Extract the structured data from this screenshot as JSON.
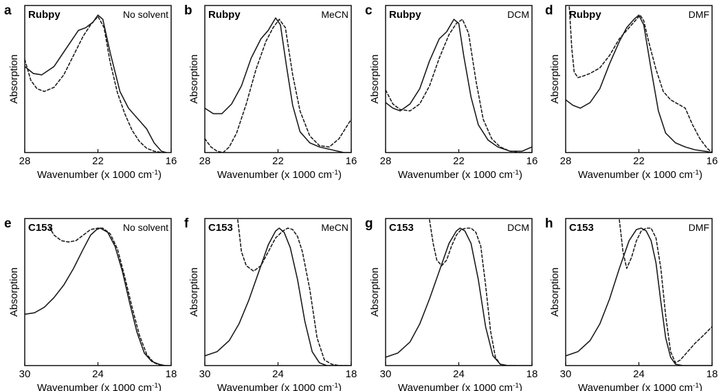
{
  "colors": {
    "line": "#1a1a1a",
    "frame": "#000000",
    "background": "#ffffff"
  },
  "chart_data": [
    {
      "type": "line",
      "panel": "a",
      "compound": "Rubpy",
      "solvent": "No solvent",
      "xlabel": "Wavenumber (x 1000 cm",
      "xlabel_sup": "-1",
      "xlabel_close": ")",
      "ylabel": "Absorption",
      "xlim": [
        28,
        16
      ],
      "xticks": [
        "28",
        "22",
        "16"
      ],
      "ylim": [
        0,
        1
      ],
      "series": [
        {
          "name": "solid",
          "style": "solid",
          "x": [
            28,
            27.3,
            26.6,
            25.6,
            24.6,
            23.6,
            23.0,
            22.4,
            22.0,
            21.6,
            21.0,
            20.2,
            19.5,
            18.8,
            18.0,
            17.4,
            16.8,
            16.4
          ],
          "y": [
            0.62,
            0.57,
            0.56,
            0.62,
            0.75,
            0.88,
            0.9,
            0.94,
            0.99,
            0.96,
            0.72,
            0.44,
            0.32,
            0.25,
            0.17,
            0.07,
            0.01,
            0.0
          ]
        },
        {
          "name": "dashed",
          "style": "dashed",
          "x": [
            28,
            27.5,
            27.0,
            26.4,
            25.6,
            24.8,
            24.0,
            23.2,
            22.6,
            22.0,
            21.5,
            21.0,
            20.4,
            19.8,
            19.2,
            18.6,
            18.0,
            17.4,
            16.8
          ],
          "y": [
            0.67,
            0.52,
            0.46,
            0.44,
            0.47,
            0.56,
            0.7,
            0.84,
            0.92,
            0.98,
            0.9,
            0.65,
            0.43,
            0.28,
            0.16,
            0.08,
            0.03,
            0.01,
            0.0
          ]
        }
      ]
    },
    {
      "type": "line",
      "panel": "b",
      "compound": "Rubpy",
      "solvent": "MeCN",
      "xlabel": "Wavenumber (x 1000 cm",
      "xlabel_sup": "-1",
      "xlabel_close": ")",
      "ylabel": "Absorption",
      "xlim": [
        28,
        16
      ],
      "xticks": [
        "28",
        "22",
        "16"
      ],
      "ylim": [
        0,
        1
      ],
      "series": [
        {
          "name": "solid",
          "style": "solid",
          "x": [
            28,
            27.3,
            26.6,
            25.8,
            25.0,
            24.2,
            23.4,
            22.8,
            22.2,
            21.8,
            21.3,
            20.8,
            20.2,
            19.4,
            18.6,
            17.6,
            16.6,
            16
          ],
          "y": [
            0.32,
            0.28,
            0.28,
            0.35,
            0.48,
            0.68,
            0.82,
            0.88,
            0.97,
            0.92,
            0.62,
            0.34,
            0.15,
            0.07,
            0.04,
            0.02,
            0.0,
            0.0
          ]
        },
        {
          "name": "dashed",
          "style": "dashed",
          "x": [
            28,
            27.5,
            27.0,
            26.5,
            26.0,
            25.4,
            24.6,
            23.8,
            23.0,
            22.4,
            21.9,
            21.4,
            20.8,
            20.2,
            19.4,
            18.6,
            17.8,
            17.0,
            16.0
          ],
          "y": [
            0.1,
            0.04,
            0.01,
            0.0,
            0.04,
            0.14,
            0.35,
            0.6,
            0.8,
            0.9,
            0.96,
            0.9,
            0.56,
            0.3,
            0.12,
            0.05,
            0.04,
            0.1,
            0.24
          ]
        }
      ]
    },
    {
      "type": "line",
      "panel": "c",
      "compound": "Rubpy",
      "solvent": "DCM",
      "xlabel": "Wavenumber (x 1000 cm",
      "xlabel_sup": "-1",
      "xlabel_close": ")",
      "ylabel": "Absorption",
      "xlim": [
        28,
        16
      ],
      "xticks": [
        "28",
        "22",
        "16"
      ],
      "ylim": [
        0,
        1
      ],
      "series": [
        {
          "name": "solid",
          "style": "solid",
          "x": [
            28,
            27.4,
            26.8,
            26.0,
            25.2,
            24.4,
            23.6,
            23.0,
            22.4,
            22.0,
            21.6,
            21.0,
            20.4,
            19.6,
            18.8,
            17.8,
            16.8,
            16
          ],
          "y": [
            0.36,
            0.32,
            0.3,
            0.35,
            0.46,
            0.66,
            0.82,
            0.87,
            0.96,
            0.93,
            0.7,
            0.4,
            0.2,
            0.09,
            0.04,
            0.01,
            0.01,
            0.04
          ]
        },
        {
          "name": "dashed",
          "style": "dashed",
          "x": [
            28,
            27.4,
            26.8,
            26.0,
            25.2,
            24.4,
            23.6,
            22.8,
            22.2,
            21.7,
            21.2,
            20.6,
            20.0,
            19.3,
            18.6,
            17.8,
            17.0,
            16.0
          ],
          "y": [
            0.45,
            0.35,
            0.31,
            0.3,
            0.35,
            0.48,
            0.68,
            0.85,
            0.93,
            0.96,
            0.86,
            0.52,
            0.24,
            0.1,
            0.04,
            0.01,
            0.0,
            0.0
          ]
        }
      ]
    },
    {
      "type": "line",
      "panel": "d",
      "compound": "Rubpy",
      "solvent": "DMF",
      "xlabel": "Wavenumber (x 1000 cm",
      "xlabel_sup": "-1",
      "xlabel_close": ")",
      "ylabel": "Absorption",
      "xlim": [
        28,
        16
      ],
      "xticks": [
        "28",
        "22",
        "16"
      ],
      "ylim": [
        0,
        1
      ],
      "series": [
        {
          "name": "solid",
          "style": "solid",
          "x": [
            28,
            27.4,
            26.8,
            26.0,
            25.2,
            24.4,
            23.6,
            23.0,
            22.4,
            22.0,
            21.6,
            21.0,
            20.4,
            19.8,
            19.0,
            18.2,
            17.4,
            16.6,
            16
          ],
          "y": [
            0.38,
            0.34,
            0.32,
            0.36,
            0.46,
            0.64,
            0.8,
            0.9,
            0.96,
            0.99,
            0.92,
            0.6,
            0.3,
            0.14,
            0.07,
            0.04,
            0.02,
            0.01,
            0.0
          ]
        },
        {
          "name": "dashed",
          "style": "dashed",
          "x": [
            27.7,
            27.5,
            27.3,
            27.0,
            26.6,
            26.0,
            25.2,
            24.4,
            23.6,
            22.8,
            22.2,
            21.9,
            21.6,
            21.2,
            20.6,
            20.0,
            19.4,
            18.8,
            18.2,
            17.6,
            17.0,
            16.4,
            16
          ],
          "y": [
            1.05,
            0.75,
            0.58,
            0.54,
            0.55,
            0.57,
            0.61,
            0.7,
            0.82,
            0.9,
            0.96,
            0.99,
            0.95,
            0.8,
            0.6,
            0.44,
            0.38,
            0.35,
            0.32,
            0.2,
            0.1,
            0.03,
            0.0
          ]
        }
      ]
    },
    {
      "type": "line",
      "panel": "e",
      "compound": "C153",
      "solvent": "No solvent",
      "xlabel": "Wavenumber (x 1000 cm",
      "xlabel_sup": "-1",
      "xlabel_close": ")",
      "ylabel": "Absorption",
      "xlim": [
        30,
        18
      ],
      "xticks": [
        "30",
        "24",
        "18"
      ],
      "ylim": [
        0,
        1
      ],
      "series": [
        {
          "name": "solid",
          "style": "solid",
          "x": [
            30,
            29.2,
            28.4,
            27.6,
            26.8,
            26.0,
            25.2,
            24.6,
            24.1,
            23.8,
            23.2,
            22.6,
            22.0,
            21.4,
            20.8,
            20.2,
            19.6,
            19.0,
            18.5,
            18.0
          ],
          "y": [
            0.37,
            0.38,
            0.42,
            0.49,
            0.58,
            0.7,
            0.84,
            0.94,
            0.98,
            0.99,
            0.96,
            0.86,
            0.68,
            0.45,
            0.24,
            0.09,
            0.03,
            0.01,
            0.0,
            0.0
          ]
        },
        {
          "name": "dashed",
          "style": "dashed",
          "x": [
            28.0,
            27.6,
            27.0,
            26.4,
            25.8,
            25.2,
            24.6,
            24.0,
            23.6,
            23.0,
            22.4,
            21.8,
            21.2,
            20.6,
            20.0,
            19.4,
            18.8,
            18.3
          ],
          "y": [
            1.0,
            0.94,
            0.9,
            0.89,
            0.9,
            0.94,
            0.98,
            0.99,
            0.99,
            0.95,
            0.84,
            0.64,
            0.42,
            0.22,
            0.08,
            0.02,
            0.0,
            0.0
          ]
        }
      ]
    },
    {
      "type": "line",
      "panel": "f",
      "compound": "C153",
      "solvent": "MeCN",
      "xlabel": "Wavenumber (x 1000 cm",
      "xlabel_sup": "-1",
      "xlabel_close": ")",
      "ylabel": "Absorption",
      "xlim": [
        30,
        18
      ],
      "xticks": [
        "30",
        "24",
        "18"
      ],
      "ylim": [
        0,
        1
      ],
      "series": [
        {
          "name": "solid",
          "style": "solid",
          "x": [
            30,
            29.0,
            28.0,
            27.2,
            26.4,
            25.6,
            24.8,
            24.2,
            23.9,
            23.5,
            23.0,
            22.4,
            21.8,
            21.2,
            20.6,
            20.0,
            19.4,
            18.6,
            18.0
          ],
          "y": [
            0.07,
            0.1,
            0.18,
            0.3,
            0.47,
            0.67,
            0.87,
            0.97,
            0.99,
            0.96,
            0.85,
            0.62,
            0.32,
            0.1,
            0.02,
            0.0,
            0.0,
            0.0,
            0.0
          ]
        },
        {
          "name": "dashed",
          "style": "dashed",
          "x": [
            27.3,
            27.0,
            26.6,
            26.0,
            25.4,
            24.8,
            24.2,
            23.6,
            23.2,
            22.8,
            22.4,
            22.0,
            21.4,
            20.8,
            20.2,
            19.6,
            19.0,
            18.4
          ],
          "y": [
            1.05,
            0.82,
            0.72,
            0.68,
            0.72,
            0.82,
            0.92,
            0.97,
            0.99,
            0.98,
            0.93,
            0.82,
            0.55,
            0.2,
            0.04,
            0.01,
            0.0,
            0.0
          ]
        }
      ]
    },
    {
      "type": "line",
      "panel": "g",
      "compound": "C153",
      "solvent": "DCM",
      "xlabel": "Wavenumber (x 1000 cm",
      "xlabel_sup": "-1",
      "xlabel_close": ")",
      "ylabel": "Absorption",
      "xlim": [
        30,
        18
      ],
      "xticks": [
        "30",
        "24",
        "18"
      ],
      "ylim": [
        0,
        1
      ],
      "series": [
        {
          "name": "solid",
          "style": "solid",
          "x": [
            30,
            29.0,
            28.0,
            27.2,
            26.4,
            25.6,
            24.8,
            24.2,
            23.9,
            23.5,
            23.0,
            22.4,
            21.8,
            21.2,
            20.6,
            20.0,
            19.4,
            18.6,
            18.0
          ],
          "y": [
            0.06,
            0.09,
            0.17,
            0.3,
            0.48,
            0.68,
            0.88,
            0.97,
            0.99,
            0.97,
            0.88,
            0.62,
            0.28,
            0.07,
            0.01,
            0.0,
            0.0,
            0.0,
            0.0
          ]
        },
        {
          "name": "dashed",
          "style": "dashed",
          "x": [
            26.4,
            26.1,
            25.8,
            25.4,
            25.0,
            24.6,
            24.2,
            23.8,
            23.4,
            23.0,
            22.6,
            22.2,
            21.8,
            21.4,
            21.0,
            20.6,
            20.0,
            19.4
          ],
          "y": [
            1.05,
            0.88,
            0.76,
            0.72,
            0.76,
            0.86,
            0.94,
            0.98,
            0.99,
            0.99,
            0.96,
            0.86,
            0.58,
            0.25,
            0.06,
            0.01,
            0.0,
            0.0
          ]
        }
      ]
    },
    {
      "type": "line",
      "panel": "h",
      "compound": "C153",
      "solvent": "DMF",
      "xlabel": "Wavenumber (x 1000 cm",
      "xlabel_sup": "-1",
      "xlabel_close": ")",
      "ylabel": "Absorption",
      "xlim": [
        30,
        18
      ],
      "xticks": [
        "30",
        "24",
        "18"
      ],
      "ylim": [
        0,
        1
      ],
      "series": [
        {
          "name": "solid",
          "style": "solid",
          "x": [
            30,
            29.0,
            28.0,
            27.2,
            26.4,
            25.6,
            24.8,
            24.2,
            23.8,
            23.4,
            23.0,
            22.6,
            22.2,
            21.8,
            21.4,
            21.0,
            20.4,
            19.6,
            18.8,
            18.0
          ],
          "y": [
            0.07,
            0.1,
            0.18,
            0.3,
            0.48,
            0.7,
            0.9,
            0.98,
            0.99,
            0.97,
            0.9,
            0.74,
            0.46,
            0.2,
            0.06,
            0.01,
            0.0,
            0.0,
            0.0,
            0.0
          ]
        },
        {
          "name": "dashed",
          "style": "dashed",
          "x": [
            25.6,
            25.3,
            25.0,
            24.6,
            24.2,
            23.8,
            23.4,
            23.0,
            22.6,
            22.2,
            21.8,
            21.4,
            21.0,
            20.6,
            20.0,
            19.4,
            18.8,
            18.0
          ],
          "y": [
            1.05,
            0.82,
            0.7,
            0.78,
            0.9,
            0.97,
            0.99,
            0.99,
            0.92,
            0.7,
            0.36,
            0.1,
            0.02,
            0.04,
            0.1,
            0.16,
            0.21,
            0.28
          ]
        }
      ]
    }
  ]
}
